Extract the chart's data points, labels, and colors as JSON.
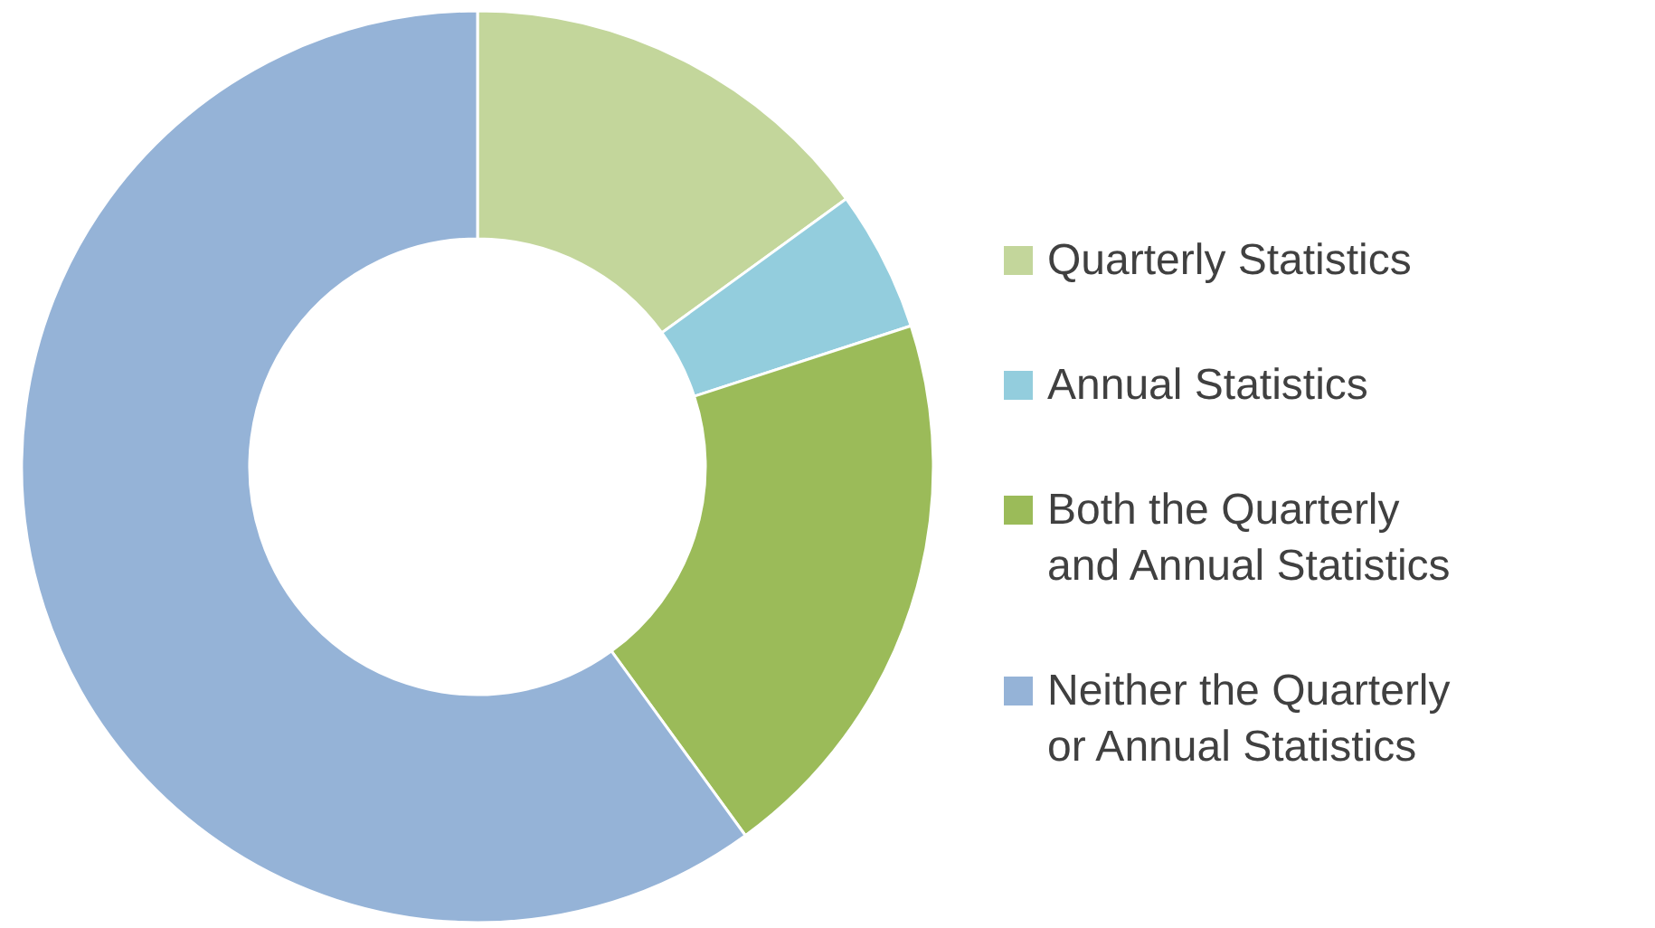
{
  "chart_data": {
    "type": "donut",
    "categories": [
      "Quarterly Statistics",
      "Annual Statistics",
      "Both the Quarterly and Annual Statistics",
      "Neither the Quarterly or Annual Statistics"
    ],
    "values": [
      15,
      5,
      20,
      60
    ],
    "colors": [
      "#c3d69b",
      "#93cddd",
      "#9bbb59",
      "#95b3d7"
    ],
    "legend": "right"
  }
}
